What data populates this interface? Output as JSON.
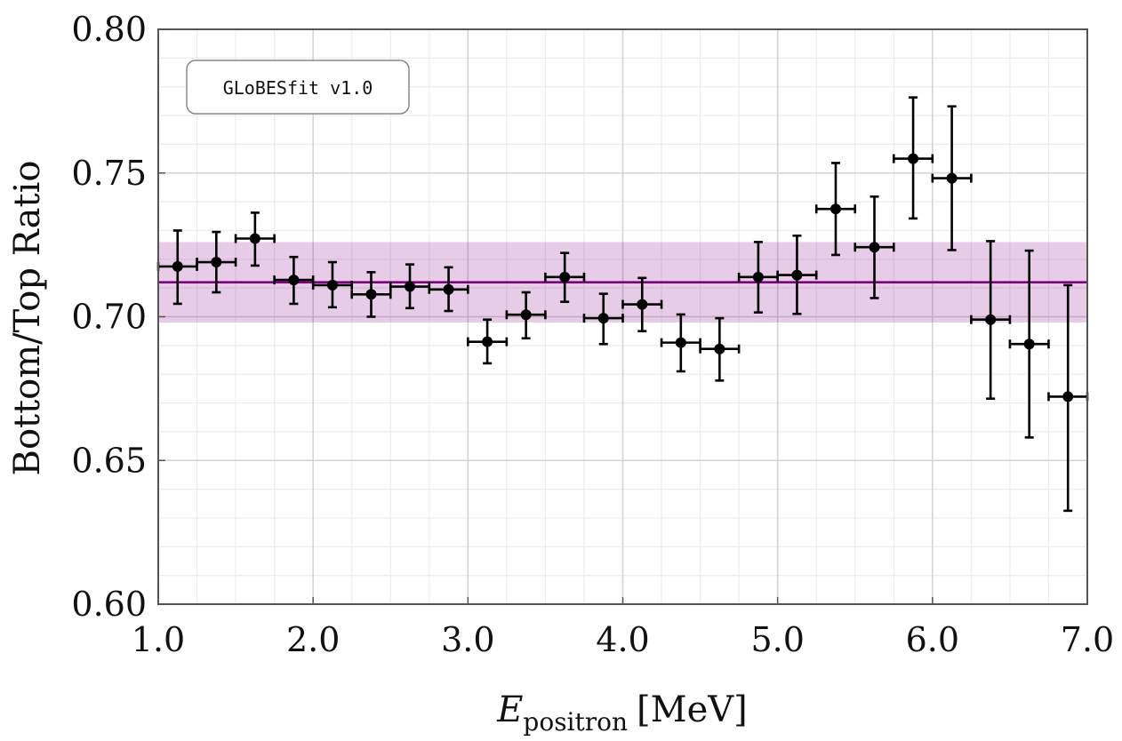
{
  "chart_data": {
    "type": "scatter",
    "title": "",
    "xlabel_main": "E",
    "xlabel_sub": "positron",
    "xlabel_unit": "[MeV]",
    "ylabel": "Bottom/Top Ratio",
    "xlim": [
      1.0,
      7.0
    ],
    "ylim": [
      0.6,
      0.8
    ],
    "x_ticks": [
      1.0,
      2.0,
      3.0,
      4.0,
      5.0,
      6.0,
      7.0
    ],
    "x_tick_labels": [
      "1.0",
      "2.0",
      "3.0",
      "4.0",
      "5.0",
      "6.0",
      "7.0"
    ],
    "y_ticks": [
      0.6,
      0.65,
      0.7,
      0.75,
      0.8
    ],
    "y_tick_labels": [
      "0.60",
      "0.65",
      "0.70",
      "0.75",
      "0.80"
    ],
    "grid": true,
    "annotation": "GLoBESfit v1.0",
    "fit": {
      "value": 0.712,
      "band_low": 0.698,
      "band_high": 0.726,
      "color": "#800080"
    },
    "points": [
      {
        "x": 1.125,
        "xerr": 0.125,
        "y": 0.7175,
        "ylo": 0.7045,
        "yhi": 0.73
      },
      {
        "x": 1.375,
        "xerr": 0.125,
        "y": 0.719,
        "ylo": 0.7085,
        "yhi": 0.7295
      },
      {
        "x": 1.625,
        "xerr": 0.125,
        "y": 0.7272,
        "ylo": 0.7178,
        "yhi": 0.7362
      },
      {
        "x": 1.875,
        "xerr": 0.125,
        "y": 0.7128,
        "ylo": 0.7045,
        "yhi": 0.7208
      },
      {
        "x": 2.125,
        "xerr": 0.125,
        "y": 0.711,
        "ylo": 0.7033,
        "yhi": 0.719
      },
      {
        "x": 2.375,
        "xerr": 0.125,
        "y": 0.7078,
        "ylo": 0.7,
        "yhi": 0.7155
      },
      {
        "x": 2.625,
        "xerr": 0.125,
        "y": 0.7105,
        "ylo": 0.703,
        "yhi": 0.7182
      },
      {
        "x": 2.875,
        "xerr": 0.125,
        "y": 0.7095,
        "ylo": 0.702,
        "yhi": 0.7172
      },
      {
        "x": 3.125,
        "xerr": 0.125,
        "y": 0.6913,
        "ylo": 0.6838,
        "yhi": 0.699
      },
      {
        "x": 3.375,
        "xerr": 0.125,
        "y": 0.7007,
        "ylo": 0.6925,
        "yhi": 0.7085
      },
      {
        "x": 3.625,
        "xerr": 0.125,
        "y": 0.7138,
        "ylo": 0.7052,
        "yhi": 0.7222
      },
      {
        "x": 3.875,
        "xerr": 0.125,
        "y": 0.6995,
        "ylo": 0.6905,
        "yhi": 0.708
      },
      {
        "x": 4.125,
        "xerr": 0.125,
        "y": 0.7043,
        "ylo": 0.695,
        "yhi": 0.7135
      },
      {
        "x": 4.375,
        "xerr": 0.125,
        "y": 0.691,
        "ylo": 0.681,
        "yhi": 0.7008
      },
      {
        "x": 4.625,
        "xerr": 0.125,
        "y": 0.6888,
        "ylo": 0.6778,
        "yhi": 0.6995
      },
      {
        "x": 4.875,
        "xerr": 0.125,
        "y": 0.7138,
        "ylo": 0.7015,
        "yhi": 0.726
      },
      {
        "x": 5.125,
        "xerr": 0.125,
        "y": 0.7145,
        "ylo": 0.701,
        "yhi": 0.7282
      },
      {
        "x": 5.375,
        "xerr": 0.125,
        "y": 0.7375,
        "ylo": 0.7215,
        "yhi": 0.7535
      },
      {
        "x": 5.625,
        "xerr": 0.125,
        "y": 0.7242,
        "ylo": 0.7065,
        "yhi": 0.7418
      },
      {
        "x": 5.875,
        "xerr": 0.125,
        "y": 0.755,
        "ylo": 0.7342,
        "yhi": 0.7763
      },
      {
        "x": 6.125,
        "xerr": 0.125,
        "y": 0.7482,
        "ylo": 0.7232,
        "yhi": 0.7732
      },
      {
        "x": 6.375,
        "xerr": 0.125,
        "y": 0.699,
        "ylo": 0.6715,
        "yhi": 0.7263
      },
      {
        "x": 6.625,
        "xerr": 0.125,
        "y": 0.6905,
        "ylo": 0.658,
        "yhi": 0.723
      },
      {
        "x": 6.875,
        "xerr": 0.125,
        "y": 0.6722,
        "ylo": 0.6325,
        "yhi": 0.711
      }
    ]
  }
}
